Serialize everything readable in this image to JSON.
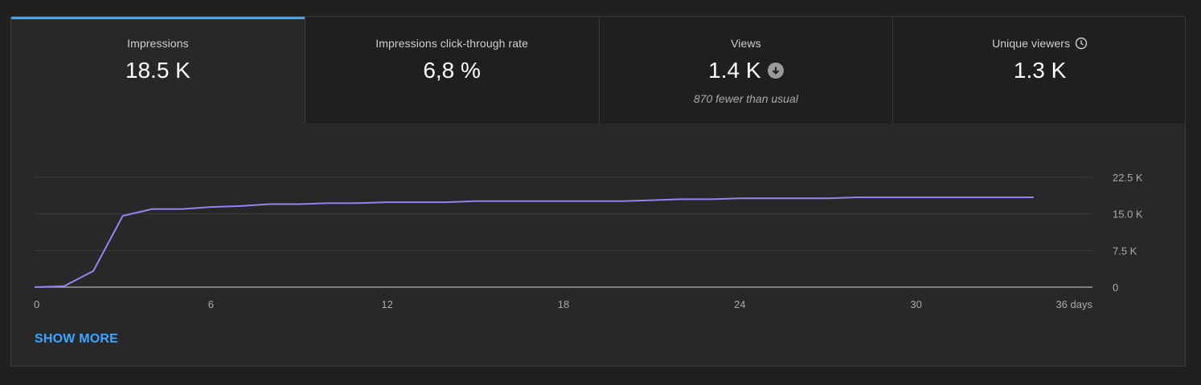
{
  "metrics": [
    {
      "label": "Impressions",
      "value": "18.5 K",
      "active": true
    },
    {
      "label": "Impressions click-through rate",
      "value": "6,8 %"
    },
    {
      "label": "Views",
      "value": "1.4 K",
      "note": "870 fewer than usual",
      "indicator": "arrow-down-circle-icon"
    },
    {
      "label": "Unique viewers",
      "value": "1.3 K",
      "indicator": "clock-icon"
    }
  ],
  "show_more_label": "SHOW MORE",
  "colors": {
    "accent": "#3ea6ff",
    "line": "#8f86f2",
    "background": "#282828"
  },
  "chart_data": {
    "type": "line",
    "x_unit": "days",
    "x_ticks": [
      "0",
      "6",
      "12",
      "18",
      "24",
      "30",
      "36 days"
    ],
    "y_ticks": [
      "22.5 K",
      "15.0 K",
      "7.5 K",
      "0"
    ],
    "xlim": [
      0,
      36
    ],
    "ylim": [
      0,
      22500
    ],
    "grid": true,
    "series": [
      {
        "x": [
          0,
          1,
          2,
          3,
          4,
          5,
          6,
          7,
          8,
          9,
          10,
          11,
          12,
          13,
          14,
          15,
          16,
          17,
          18,
          19,
          20,
          21,
          22,
          23,
          24,
          25,
          26,
          27,
          28,
          29,
          30,
          31,
          32,
          33,
          34
        ],
        "y": [
          0,
          200,
          3300,
          14600,
          16000,
          16000,
          16400,
          16600,
          17000,
          17000,
          17200,
          17200,
          17400,
          17400,
          17400,
          17600,
          17600,
          17600,
          17600,
          17600,
          17600,
          17800,
          18000,
          18000,
          18200,
          18200,
          18200,
          18200,
          18400,
          18400,
          18400,
          18400,
          18400,
          18400,
          18400
        ]
      }
    ]
  }
}
